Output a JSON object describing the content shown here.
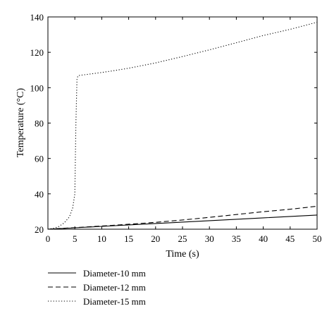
{
  "chart_data": {
    "type": "line",
    "xlabel": "Time (s)",
    "ylabel": "Temperature (°C)",
    "xlim": [
      0,
      50
    ],
    "ylim": [
      20,
      140
    ],
    "xticks": [
      0,
      5,
      10,
      15,
      20,
      25,
      30,
      35,
      40,
      45,
      50
    ],
    "yticks": [
      20,
      40,
      60,
      80,
      100,
      120,
      140
    ],
    "grid": false,
    "legend_position": "bottom",
    "series": [
      {
        "name": "Diameter-10 mm",
        "line_style": "solid",
        "color": "#000000",
        "x": [
          0,
          5,
          10,
          15,
          20,
          25,
          30,
          35,
          40,
          45,
          50
        ],
        "y": [
          20,
          20.8,
          21.6,
          22.4,
          23.2,
          24.0,
          24.8,
          25.6,
          26.4,
          27.2,
          28.0
        ]
      },
      {
        "name": "Diameter-12 mm",
        "line_style": "dashed",
        "color": "#000000",
        "x": [
          0,
          5,
          10,
          15,
          20,
          25,
          30,
          35,
          40,
          45,
          48,
          50
        ],
        "y": [
          20,
          20.9,
          21.8,
          22.8,
          23.9,
          25.2,
          26.7,
          28.3,
          29.9,
          31.3,
          32.3,
          33.0
        ]
      },
      {
        "name": "Diameter-15 mm",
        "line_style": "dotted",
        "color": "#000000",
        "x": [
          0,
          1,
          2,
          3,
          4,
          4.6,
          5.0,
          5.2,
          5.4,
          5.6,
          6,
          8,
          10,
          12,
          15,
          18,
          20,
          25,
          30,
          35,
          40,
          45,
          50
        ],
        "y": [
          20,
          20.5,
          21.5,
          23.5,
          27,
          32,
          40,
          80,
          105,
          106.8,
          107,
          107.8,
          108.6,
          109.5,
          111,
          112.8,
          114,
          117.6,
          121.4,
          125.4,
          129.5,
          133,
          137
        ]
      }
    ]
  }
}
